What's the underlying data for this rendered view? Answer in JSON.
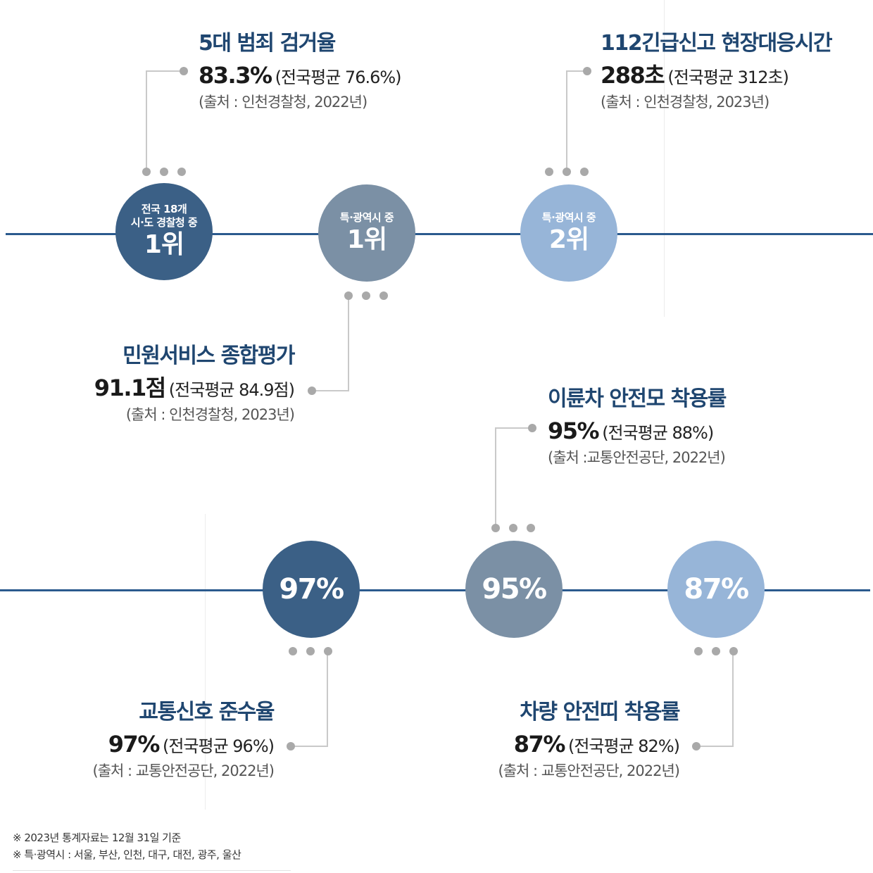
{
  "circles": [
    {
      "small1": "전국 18개",
      "small2": "시·도 경찰청 중",
      "big": "1위"
    },
    {
      "small": "특·광역시 중",
      "big": "1위"
    },
    {
      "small": "특·광역시 중",
      "big": "2위"
    },
    {
      "big": "97%"
    },
    {
      "big": "95%"
    },
    {
      "big": "87%"
    }
  ],
  "stats": {
    "crime_clearance": {
      "title": "5대 범죄 검거율",
      "value": "83.3%",
      "avg": "(전국평균 76.6%)",
      "source": "(출처 : 인천경찰청, 2022년)"
    },
    "emergency_112": {
      "title": "112긴급신고 현장대응시간",
      "value": "288초",
      "avg": "(전국평균 312초)",
      "source": "(출처 : 인천경찰청, 2023년)"
    },
    "civil_service": {
      "title": "민원서비스 종합평가",
      "value": "91.1점",
      "avg": "(전국평균 84.9점)",
      "source": "(출처 : 인천경찰청, 2023년)"
    },
    "helmet": {
      "title": "이륜차 안전모 착용률",
      "value": "95%",
      "avg": "(전국평균 88%)",
      "source": "(출처 :교통안전공단, 2022년)"
    },
    "traffic_signal": {
      "title": "교통신호 준수율",
      "value": "97%",
      "avg": "(전국평균 96%)",
      "source": "(출처 : 교통안전공단, 2022년)"
    },
    "seatbelt": {
      "title": "차량 안전띠 착용률",
      "value": "87%",
      "avg": "(전국평균 82%)",
      "source": "(출처 : 교통안전공단, 2022년)"
    }
  },
  "notes": [
    "※ 2023년 통계자료는 12월 31일 기준",
    "※ 특·광역시 : 서울, 부산, 인천, 대구, 대전, 광주, 울산"
  ],
  "colors": {
    "line": "#2b5a8e",
    "circle_dark": "#3b6086",
    "circle_mid": "#7b90a5",
    "circle_light": "#97b5d8",
    "title": "#1f4670",
    "connector": "#a9a9a9"
  }
}
